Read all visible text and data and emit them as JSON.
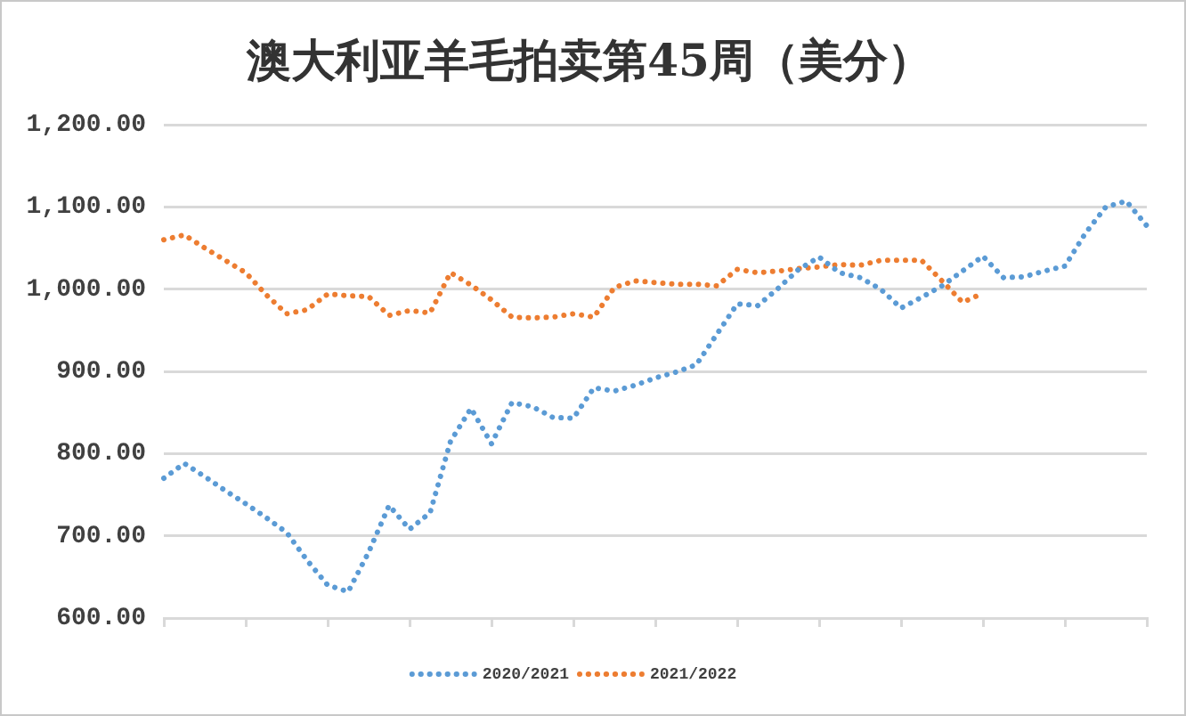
{
  "chart_data": {
    "type": "line",
    "title": "澳大利亚羊毛拍卖第45周（美分）",
    "categories": [
      null,
      null,
      null,
      null,
      null,
      null,
      null,
      null,
      null,
      null,
      null,
      null,
      null,
      null,
      null,
      null,
      null,
      null,
      null,
      null,
      null,
      null,
      null,
      null,
      null,
      null,
      null,
      null,
      null,
      null,
      null,
      null,
      null,
      null,
      null,
      null,
      null,
      null,
      null,
      null,
      null,
      null,
      null,
      null,
      null,
      null,
      null,
      null,
      null
    ],
    "series": [
      {
        "name": "2020/2021",
        "color": "#5b9bd5",
        "values": [
          770,
          788,
          772,
          755,
          739,
          722,
          704,
          670,
          640,
          632,
          680,
          737,
          708,
          728,
          815,
          855,
          812,
          862,
          857,
          844,
          843,
          880,
          876,
          883,
          892,
          899,
          908,
          945,
          982,
          980,
          1001,
          1024,
          1039,
          1020,
          1014,
          1000,
          977,
          990,
          1004,
          1022,
          1040,
          1014,
          1015,
          1022,
          1028,
          1068,
          1100,
          1107,
          1077
        ]
      },
      {
        "name": "2021/2022",
        "color": "#ed7d31",
        "values": [
          1060,
          1066,
          1050,
          1035,
          1020,
          993,
          970,
          975,
          994,
          992,
          991,
          968,
          974,
          971,
          1020,
          1005,
          987,
          966,
          965,
          966,
          970,
          966,
          1002,
          1010,
          1008,
          1006,
          1006,
          1004,
          1024,
          1020,
          1022,
          1025,
          1027,
          1030,
          1029,
          1035,
          1035,
          1035,
          1010,
          984,
          995,
          null,
          null,
          null,
          null,
          null,
          null,
          null,
          null
        ]
      }
    ],
    "ylim": [
      600,
      1200
    ],
    "yticks": [
      {
        "value": 600,
        "label": "600.00"
      },
      {
        "value": 700,
        "label": "700.00"
      },
      {
        "value": 800,
        "label": "800.00"
      },
      {
        "value": 900,
        "label": "900.00"
      },
      {
        "value": 1000,
        "label": "1,000.00"
      },
      {
        "value": 1100,
        "label": "1,100.00"
      },
      {
        "value": 1200,
        "label": "1,200.00"
      }
    ],
    "grid": "y",
    "legend": "bottom",
    "tick_labels": "y",
    "marker": "none",
    "line_style": "dotted"
  }
}
